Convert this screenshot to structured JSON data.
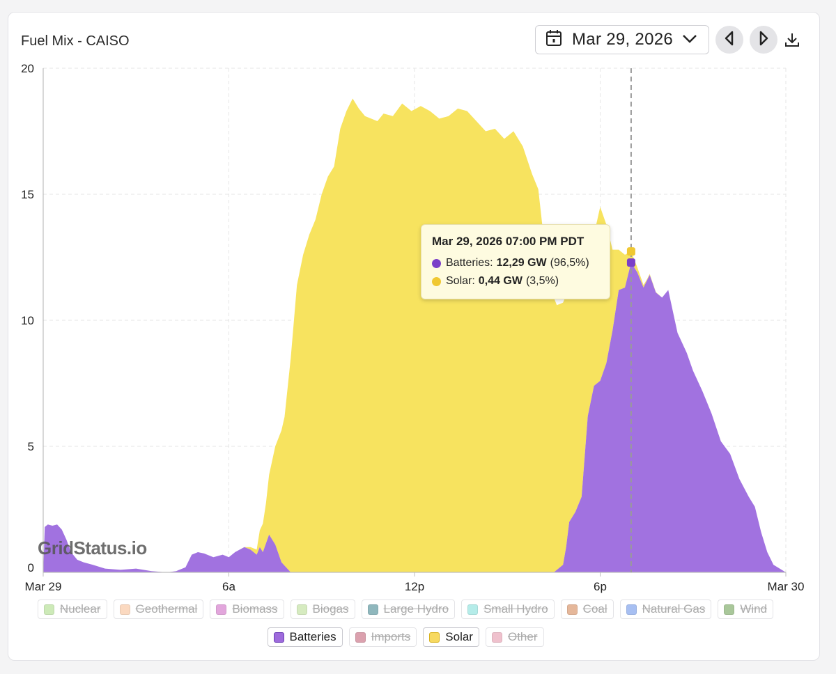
{
  "header": {
    "title": "Fuel Mix - CAISO",
    "date": "Mar 29, 2026"
  },
  "watermark": "GridStatus.io",
  "tooltip": {
    "title": "Mar 29, 2026 07:00 PM PDT",
    "rows": [
      {
        "name": "Batteries:",
        "value": "12,29 GW",
        "pct": "(96,5%)",
        "color": "#7b3fc8"
      },
      {
        "name": "Solar:",
        "value": "0,44 GW",
        "pct": "(3,5%)",
        "color": "#f0c832"
      }
    ]
  },
  "legend": {
    "items": [
      {
        "label": "Nuclear",
        "color": "#cdeab8",
        "active": false
      },
      {
        "label": "Geothermal",
        "color": "#fbd9c0",
        "active": false
      },
      {
        "label": "Biomass",
        "color": "#e2a6dc",
        "active": false
      },
      {
        "label": "Biogas",
        "color": "#d6ebc0",
        "active": false
      },
      {
        "label": "Large Hydro",
        "color": "#8fb7bd",
        "active": false
      },
      {
        "label": "Small Hydro",
        "color": "#b5ece9",
        "active": false
      },
      {
        "label": "Coal",
        "color": "#e5b79a",
        "active": false
      },
      {
        "label": "Natural Gas",
        "color": "#a7bff2",
        "active": false
      },
      {
        "label": "Wind",
        "color": "#a9c79a",
        "active": false
      },
      {
        "label": "Batteries",
        "color": "#9e6bdc",
        "active": true
      },
      {
        "label": "Imports",
        "color": "#dba1ae",
        "active": false
      },
      {
        "label": "Solar",
        "color": "#f7d960",
        "active": true
      },
      {
        "label": "Other",
        "color": "#efc1cd",
        "active": false
      }
    ]
  },
  "chart_data": {
    "type": "area",
    "stacked": true,
    "xlim": [
      0,
      24
    ],
    "ylim": [
      0,
      20
    ],
    "x_ticks": [
      {
        "x": 0,
        "label": "Mar 29"
      },
      {
        "x": 6,
        "label": "6a"
      },
      {
        "x": 12,
        "label": "12p"
      },
      {
        "x": 18,
        "label": "6p"
      },
      {
        "x": 24,
        "label": "Mar 30"
      }
    ],
    "y_ticks": [
      0,
      5,
      10,
      15,
      20
    ],
    "grid": true,
    "hover_x": 19,
    "series": [
      {
        "name": "Batteries",
        "color": "#9e6bdc",
        "x": [
          0,
          0.05,
          0.15,
          0.3,
          0.45,
          0.6,
          0.75,
          0.9,
          1.1,
          1.3,
          1.6,
          2.0,
          2.5,
          3.0,
          3.5,
          4.0,
          4.3,
          4.6,
          4.8,
          5.0,
          5.2,
          5.5,
          5.8,
          6.0,
          6.2,
          6.5,
          6.7,
          6.9,
          7.0,
          7.1,
          7.3,
          7.5,
          7.7,
          8.0,
          9.0,
          10.0,
          11.0,
          12.0,
          13.0,
          14.0,
          15.0,
          16.0,
          16.5,
          16.8,
          16.9,
          17.0,
          17.2,
          17.4,
          17.6,
          17.8,
          18.0,
          18.2,
          18.4,
          18.6,
          18.8,
          19.0,
          19.2,
          19.4,
          19.6,
          19.8,
          20.0,
          20.2,
          20.5,
          20.8,
          21.0,
          21.3,
          21.6,
          21.9,
          22.2,
          22.5,
          22.8,
          23.0,
          23.2,
          23.4,
          23.6,
          24.0
        ],
        "values": [
          0,
          1.8,
          1.9,
          1.85,
          1.9,
          1.7,
          1.3,
          0.8,
          0.5,
          0.4,
          0.3,
          0.15,
          0.1,
          0.15,
          0.05,
          0,
          0.05,
          0.2,
          0.7,
          0.8,
          0.75,
          0.6,
          0.7,
          0.6,
          0.8,
          1.0,
          0.9,
          0.7,
          1.0,
          0.8,
          1.5,
          1.1,
          0.4,
          0,
          0,
          0,
          0,
          0,
          0,
          0,
          0,
          0,
          0,
          0.3,
          1.0,
          2.0,
          2.4,
          3.0,
          6.2,
          7.4,
          7.6,
          8.3,
          9.6,
          11.2,
          11.3,
          12.29,
          11.9,
          11.3,
          11.8,
          11.1,
          10.9,
          11.2,
          9.5,
          8.7,
          8.0,
          7.2,
          6.3,
          5.2,
          4.7,
          3.7,
          3.0,
          2.6,
          1.6,
          0.8,
          0.3,
          0
        ],
        "note_hover_value": 12.29
      },
      {
        "name": "Solar",
        "color": "#f7d960",
        "x": [
          0,
          6.5,
          6.9,
          7.2,
          7.5,
          7.8,
          8.0,
          8.2,
          8.4,
          8.6,
          8.8,
          9.0,
          9.2,
          9.4,
          9.6,
          9.8,
          10.0,
          10.2,
          10.4,
          10.6,
          10.8,
          11.0,
          11.3,
          11.6,
          11.9,
          12.2,
          12.5,
          12.8,
          13.1,
          13.4,
          13.7,
          14.0,
          14.3,
          14.6,
          14.9,
          15.2,
          15.5,
          15.8,
          16.0,
          16.2,
          16.4,
          16.6,
          16.8,
          17.0,
          17.2,
          17.4,
          17.6,
          17.8,
          18.0,
          18.2,
          18.4,
          18.6,
          18.8,
          19.0,
          19.2,
          19.5,
          20.0,
          24.0
        ],
        "values": [
          0,
          0,
          0.2,
          1.6,
          3.9,
          5.9,
          8.5,
          11.4,
          12.6,
          13.4,
          14.0,
          15.0,
          15.7,
          16.1,
          17.6,
          18.3,
          18.8,
          18.4,
          18.1,
          18.0,
          17.9,
          18.2,
          18.1,
          18.6,
          18.3,
          18.5,
          18.3,
          18.0,
          18.1,
          18.4,
          18.3,
          17.9,
          17.5,
          17.6,
          17.2,
          17.5,
          16.9,
          15.8,
          15.2,
          13.0,
          11.3,
          10.5,
          10.4,
          9.6,
          9.7,
          9.0,
          6.8,
          6.0,
          6.9,
          5.5,
          3.2,
          1.6,
          1.3,
          0.44,
          0.2,
          0.05,
          0,
          0
        ],
        "note_hover_value": 0.44
      }
    ]
  }
}
